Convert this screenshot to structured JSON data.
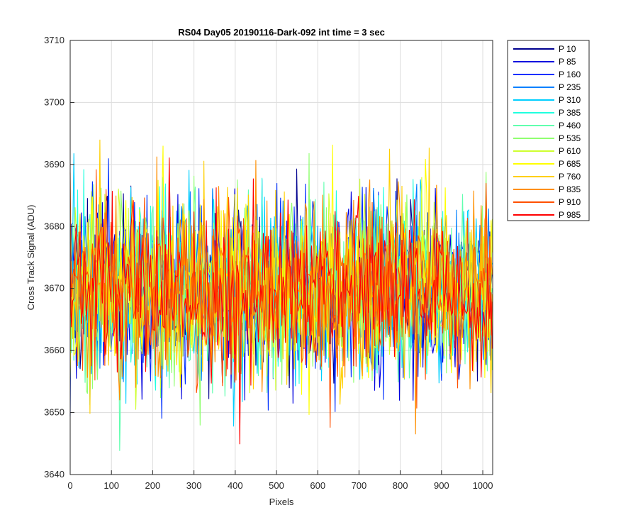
{
  "chart_data": {
    "type": "line",
    "title": "RS04 Day05 20190116-Dark-092 int time = 3 sec",
    "xlabel": "Pixels",
    "ylabel": "Cross Track Signal (ADU)",
    "xlim": [
      0,
      1024
    ],
    "ylim": [
      3640,
      3710
    ],
    "xticks": [
      0,
      100,
      200,
      300,
      400,
      500,
      600,
      700,
      800,
      900,
      1000
    ],
    "yticks": [
      3640,
      3650,
      3660,
      3670,
      3680,
      3690,
      3700,
      3710
    ],
    "grid": true,
    "legend_position": "outside-top-right",
    "signal_mean": 3670,
    "signal_std": 7,
    "series": [
      {
        "name": "P 10",
        "color": "#00008f"
      },
      {
        "name": "P 85",
        "color": "#0000df"
      },
      {
        "name": "P 160",
        "color": "#0030ff"
      },
      {
        "name": "P 235",
        "color": "#0080ff"
      },
      {
        "name": "P 310",
        "color": "#00cfff"
      },
      {
        "name": "P 385",
        "color": "#20ffdf"
      },
      {
        "name": "P 460",
        "color": "#60ffaf"
      },
      {
        "name": "P 535",
        "color": "#90ff70"
      },
      {
        "name": "P 610",
        "color": "#cfff30"
      },
      {
        "name": "P 685",
        "color": "#ffff00"
      },
      {
        "name": "P 760",
        "color": "#ffcf00"
      },
      {
        "name": "P 835",
        "color": "#ff8f00"
      },
      {
        "name": "P 910",
        "color": "#ff5000"
      },
      {
        "name": "P 985",
        "color": "#ff0000"
      }
    ]
  }
}
